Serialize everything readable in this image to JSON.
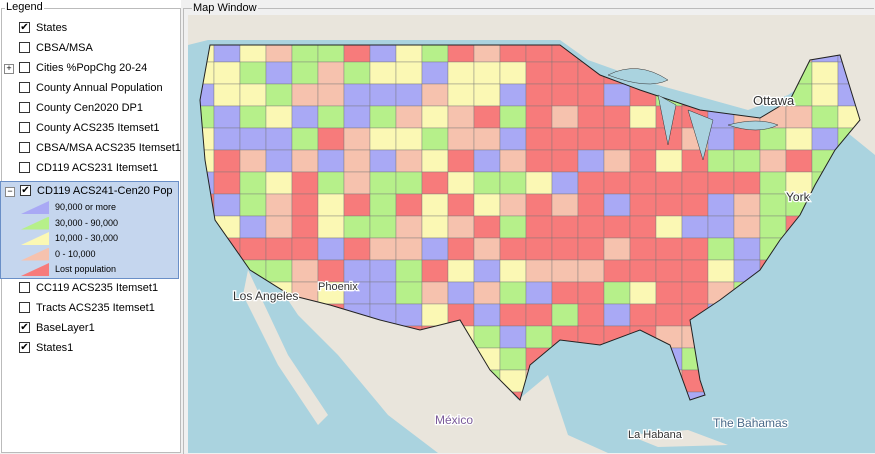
{
  "legend": {
    "title": "Legend",
    "layers": [
      {
        "name": "States",
        "checked": true
      },
      {
        "name": "CBSA/MSA",
        "checked": false
      },
      {
        "name": "Cities %PopChg 20-24",
        "checked": false,
        "expanded": false
      },
      {
        "name": "County Annual Population",
        "checked": false
      },
      {
        "name": "County Cen2020 DP1",
        "checked": false
      },
      {
        "name": "County ACS235 Itemset1",
        "checked": false
      },
      {
        "name": "CBSA/MSA ACS235 Itemset1",
        "checked": false
      },
      {
        "name": "CD119 ACS231 Itemset1",
        "checked": false
      },
      {
        "name": "CD119  ACS241-Cen20 Pop",
        "checked": true,
        "expanded": true,
        "classes": [
          {
            "label": "90,000 or more",
            "color": "#a9a9f5"
          },
          {
            "label": "30,000 - 90,000",
            "color": "#b6f08a"
          },
          {
            "label": "10,000 - 30,000",
            "color": "#fbf8b4"
          },
          {
            "label": "0 - 10,000",
            "color": "#f6c2ae"
          },
          {
            "label": "Lost population",
            "color": "#f77b7b"
          }
        ]
      },
      {
        "name": "CC119 ACS235 Itemset1",
        "checked": false
      },
      {
        "name": "Tracts ACS235 Itemset1",
        "checked": false
      },
      {
        "name": "BaseLayer1",
        "checked": true
      },
      {
        "name": "States1",
        "checked": true
      }
    ]
  },
  "map": {
    "title": "Map Window",
    "labels": [
      "Ottawa",
      "York",
      "Los Angeles",
      "Phoenix",
      "México",
      "La Habana",
      "The Bahamas"
    ]
  }
}
